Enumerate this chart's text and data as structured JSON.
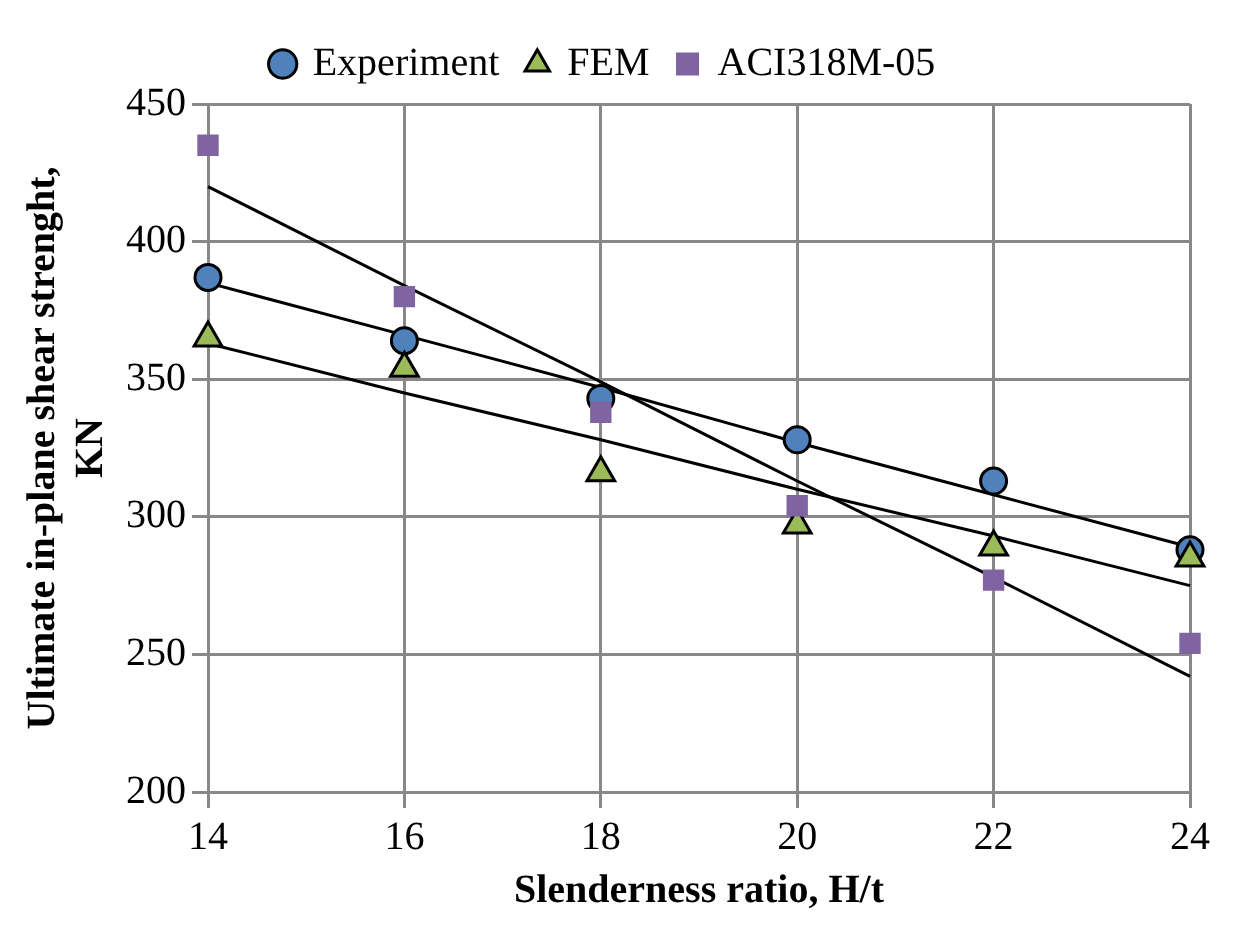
{
  "chart_data": {
    "type": "scatter",
    "xlabel": "Slenderness ratio, H/t",
    "ylabel": "Ultimate in-plane shear strenght, KN",
    "x": [
      14,
      16,
      18,
      20,
      22,
      24
    ],
    "series": [
      {
        "name": "Experiment",
        "color": "#4f81bd",
        "marker": "circle",
        "values": [
          387,
          364,
          343,
          328,
          313,
          288
        ]
      },
      {
        "name": "FEM",
        "color": "#9bbb59",
        "marker": "triangle",
        "values": [
          365,
          354,
          316,
          297,
          289,
          285
        ]
      },
      {
        "name": "ACI318M-05",
        "color": "#8064a2",
        "marker": "square",
        "values": [
          435,
          380,
          338,
          304,
          277,
          254
        ]
      },
      {
        "type": "line",
        "color": "#000000",
        "values": [
          385,
          366,
          347,
          327,
          308,
          289
        ]
      },
      {
        "type": "line",
        "color": "#000000",
        "values": [
          363,
          345,
          328,
          310,
          293,
          275
        ]
      },
      {
        "type": "line",
        "color": "#000000",
        "values": [
          420,
          384,
          349,
          313,
          278,
          242
        ]
      }
    ],
    "xlim": [
      14,
      24
    ],
    "xticks": [
      14,
      16,
      18,
      20,
      22,
      24
    ],
    "ylim": [
      200,
      450
    ],
    "yticks": [
      200,
      250,
      300,
      350,
      400,
      450
    ],
    "grid": true,
    "legend": "top"
  }
}
